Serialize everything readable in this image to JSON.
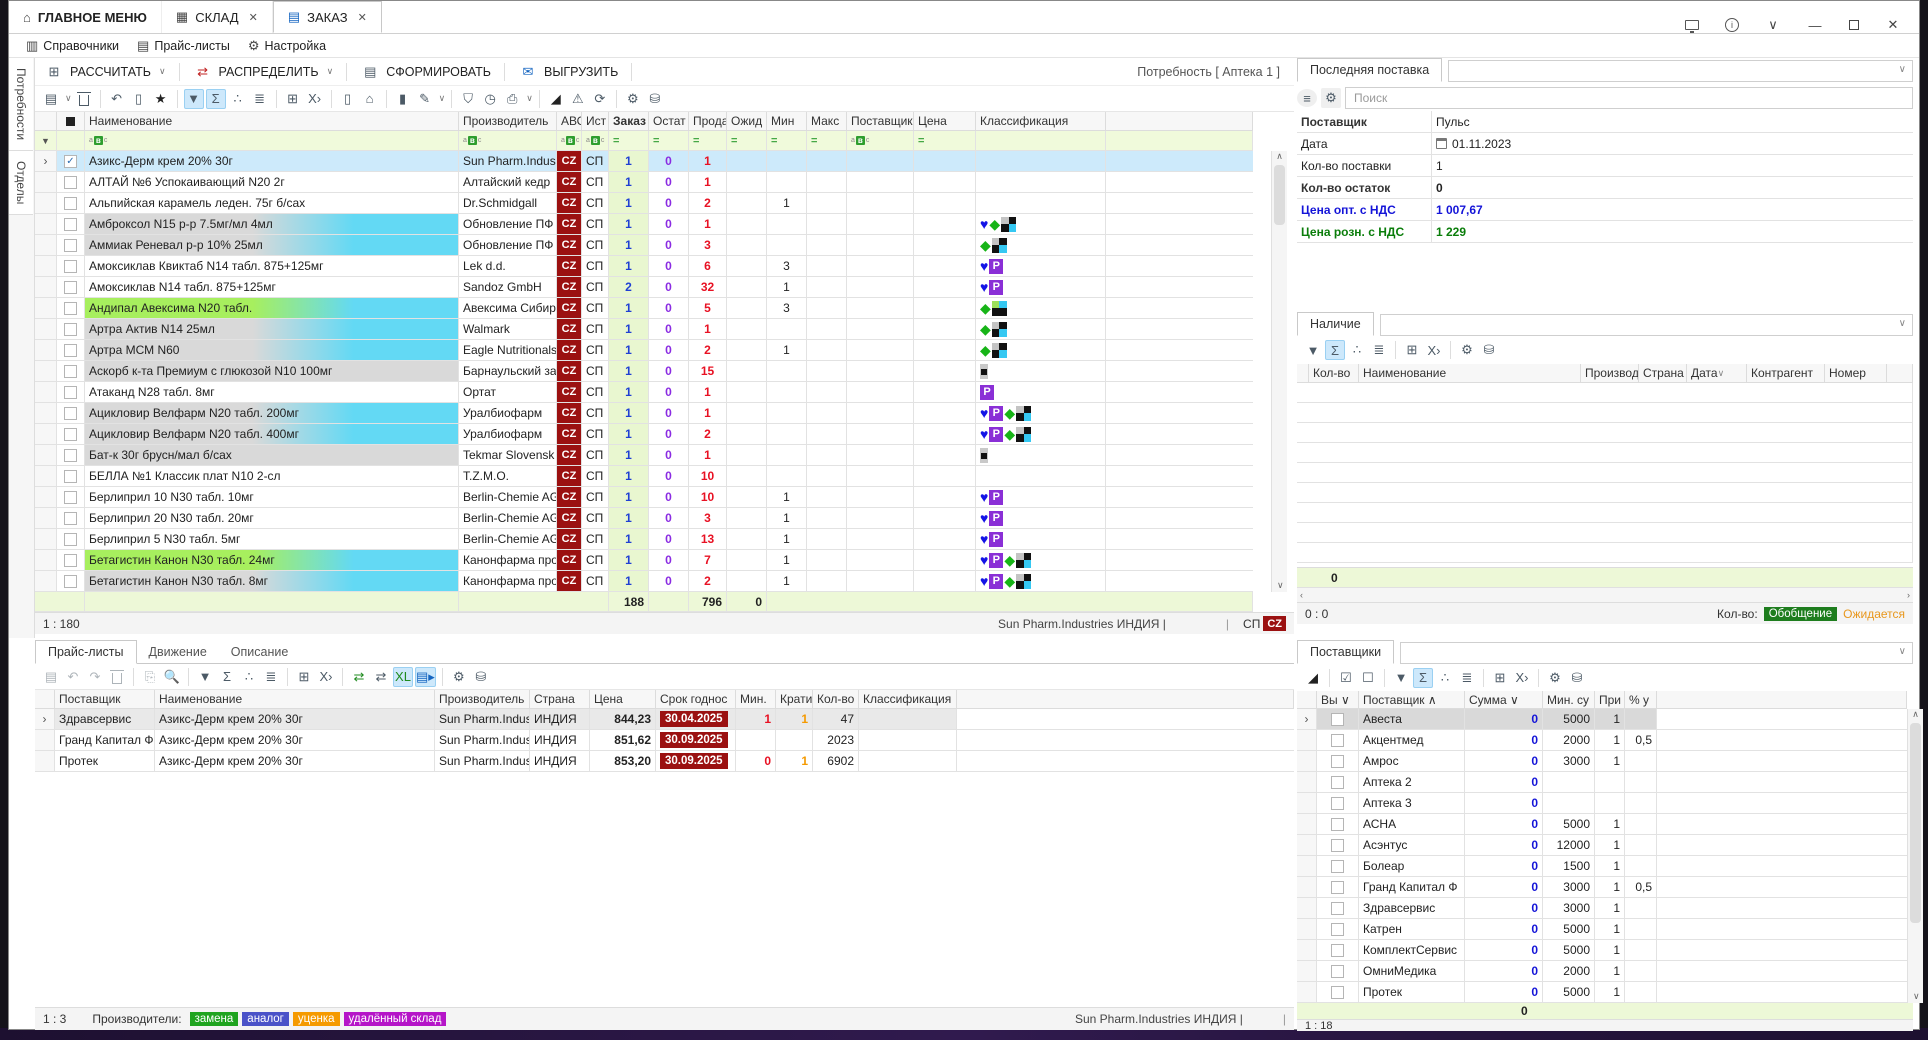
{
  "colors": {
    "accent_blue": "#1f3fd4",
    "purple": "#8a2be2",
    "red": "#e81123",
    "dark_red_badge": "#9b1111",
    "p_badge": "#8a2fd6",
    "heart": "#1414e6",
    "diamond": "#17b417",
    "cyan": "#63d9f4",
    "row_gray": "#d9d9d9",
    "row_green": "#a7ef5e",
    "selected_row": "#cdeafb",
    "filter_row": "#f0fadb",
    "summary_row": "#edf8d7"
  },
  "window": {
    "tabs": [
      {
        "label": "ГЛАВНОЕ МЕНЮ",
        "icon": "home-icon",
        "closable": false,
        "active": false
      },
      {
        "label": "СКЛАД",
        "icon": "warehouse-icon",
        "closable": true,
        "active": false
      },
      {
        "label": "ЗАКАЗ",
        "icon": "order-doc-icon",
        "closable": true,
        "active": true
      }
    ],
    "menu": [
      {
        "label": "Справочники",
        "icon": "book-icon"
      },
      {
        "label": "Прайс-листы",
        "icon": "pricelist-icon"
      },
      {
        "label": "Настройка",
        "icon": "gear-icon"
      }
    ]
  },
  "command_bar": {
    "buttons": [
      {
        "label": "РАССЧИТАТЬ",
        "icon": "calculator-icon",
        "dropdown": true
      },
      {
        "label": "РАСПРЕДЕЛИТЬ",
        "icon": "distribute-icon",
        "dropdown": true
      },
      {
        "label": "СФОРМИРОВАТЬ",
        "icon": "form-doc-icon",
        "dropdown": false
      },
      {
        "label": "ВЫГРУЗИТЬ",
        "icon": "upload-icon",
        "dropdown": false
      }
    ],
    "need_label": "Потребность  [ Аптека 1 ]"
  },
  "left_tabs": [
    "Потребности",
    "Отделы"
  ],
  "main_grid": {
    "columns": [
      "Наименование",
      "Производитель",
      "АВС",
      "Ист",
      "Заказ",
      "Остат",
      "Прода",
      "Ожид",
      "Мин",
      "Макс",
      "Поставщик",
      "Цена",
      "Классификация"
    ],
    "rows": [
      {
        "name": "Азикс-Дерм крем 20% 30г",
        "maker": "Sun Pharm.Indus",
        "av": "CZ",
        "ist": "СП",
        "zakaz": "1",
        "ostat": "0",
        "proda": "1",
        "min": "",
        "bg": "selected",
        "checked": true,
        "icons": []
      },
      {
        "name": "АЛТАЙ №6 Успокаивающий N20 2г",
        "maker": "Алтайский кедр",
        "av": "CZ",
        "ist": "СП",
        "zakaz": "1",
        "ostat": "0",
        "proda": "1",
        "min": "",
        "bg": "white",
        "checked": false,
        "icons": []
      },
      {
        "name": "Альпийская карамель леден. 75г б/сах",
        "maker": "Dr.Schmidgall",
        "av": "CZ",
        "ist": "СП",
        "zakaz": "1",
        "ostat": "0",
        "proda": "2",
        "min": "1",
        "bg": "white",
        "checked": false,
        "icons": []
      },
      {
        "name": "Амброксол N15 р-р 7.5мг/мл 4мл",
        "maker": "Обновление ПФ",
        "av": "CZ",
        "ist": "СП",
        "zakaz": "1",
        "ostat": "0",
        "proda": "1",
        "min": "",
        "bg": "gray-cyan",
        "checked": false,
        "icons": [
          "heart",
          "diamond",
          "checker"
        ]
      },
      {
        "name": "Аммиак Реневал р-р 10% 25мл",
        "maker": "Обновление ПФ",
        "av": "CZ",
        "ist": "СП",
        "zakaz": "1",
        "ostat": "0",
        "proda": "3",
        "min": "",
        "bg": "gray-cyan",
        "checked": false,
        "icons": [
          "diamond",
          "checker"
        ]
      },
      {
        "name": "Амоксиклав Квиктаб N14 табл. 875+125мг",
        "maker": "Lek d.d.",
        "av": "CZ",
        "ist": "СП",
        "zakaz": "1",
        "ostat": "0",
        "proda": "6",
        "min": "3",
        "bg": "white",
        "checked": false,
        "icons": [
          "heart",
          "p"
        ]
      },
      {
        "name": "Амоксиклав N14 табл. 875+125мг",
        "maker": "Sandoz GmbH",
        "av": "CZ",
        "ist": "СП",
        "zakaz": "2",
        "ostat": "0",
        "proda": "32",
        "min": "1",
        "bg": "white",
        "checked": false,
        "icons": [
          "heart",
          "p"
        ]
      },
      {
        "name": "Андипал Авексима N20 табл.",
        "maker": "Авексима Сибир",
        "av": "CZ",
        "ist": "СП",
        "zakaz": "1",
        "ostat": "0",
        "proda": "5",
        "min": "3",
        "bg": "green-cyan",
        "checked": false,
        "icons": [
          "diamond",
          "checker-green"
        ]
      },
      {
        "name": "Артра Актив N14 25мл",
        "maker": "Walmark",
        "av": "CZ",
        "ist": "СП",
        "zakaz": "1",
        "ostat": "0",
        "proda": "1",
        "min": "",
        "bg": "gray-cyan",
        "checked": false,
        "icons": [
          "diamond",
          "checker"
        ]
      },
      {
        "name": "Артра МСМ N60",
        "maker": "Eagle Nutritionals",
        "av": "CZ",
        "ist": "СП",
        "zakaz": "1",
        "ostat": "0",
        "proda": "2",
        "min": "1",
        "bg": "gray-cyan",
        "checked": false,
        "icons": [
          "diamond",
          "checker"
        ]
      },
      {
        "name": "Аскорб к-та Премиум с глюкозой N10 100мг",
        "maker": "Барнаульский за",
        "av": "CZ",
        "ist": "СП",
        "zakaz": "1",
        "ostat": "0",
        "proda": "15",
        "min": "",
        "bg": "gray",
        "checked": false,
        "icons": [
          "checker-small"
        ]
      },
      {
        "name": "Атаканд N28 табл. 8мг",
        "maker": "Ортат",
        "av": "CZ",
        "ist": "СП",
        "zakaz": "1",
        "ostat": "0",
        "proda": "1",
        "min": "",
        "bg": "white",
        "checked": false,
        "icons": [
          "p"
        ]
      },
      {
        "name": "Ацикловир Велфарм N20 табл. 200мг",
        "maker": "Уралбиофарм",
        "av": "CZ",
        "ist": "СП",
        "zakaz": "1",
        "ostat": "0",
        "proda": "1",
        "min": "",
        "bg": "gray-cyan",
        "checked": false,
        "icons": [
          "heart",
          "p",
          "diamond",
          "checker"
        ]
      },
      {
        "name": "Ацикловир Велфарм N20 табл. 400мг",
        "maker": "Уралбиофарм",
        "av": "CZ",
        "ist": "СП",
        "zakaz": "1",
        "ostat": "0",
        "proda": "2",
        "min": "",
        "bg": "gray-cyan",
        "checked": false,
        "icons": [
          "heart",
          "p",
          "diamond",
          "checker"
        ]
      },
      {
        "name": "Бат-к 30г брусн/мал б/сах",
        "maker": "Tekmar Slovensk",
        "av": "CZ",
        "ist": "СП",
        "zakaz": "1",
        "ostat": "0",
        "proda": "1",
        "min": "",
        "bg": "gray",
        "checked": false,
        "icons": [
          "checker-small"
        ]
      },
      {
        "name": "БЕЛЛА №1 Классик плат N10 2-сл",
        "maker": "T.Z.M.O.",
        "av": "CZ",
        "ist": "СП",
        "zakaz": "1",
        "ostat": "0",
        "proda": "10",
        "min": "",
        "bg": "white",
        "checked": false,
        "icons": []
      },
      {
        "name": "Берлиприл 10 N30 табл. 10мг",
        "maker": "Berlin-Chemie AG",
        "av": "CZ",
        "ist": "СП",
        "zakaz": "1",
        "ostat": "0",
        "proda": "10",
        "min": "1",
        "bg": "white",
        "checked": false,
        "icons": [
          "heart",
          "p"
        ]
      },
      {
        "name": "Берлиприл 20 N30 табл. 20мг",
        "maker": "Berlin-Chemie AG",
        "av": "CZ",
        "ist": "СП",
        "zakaz": "1",
        "ostat": "0",
        "proda": "3",
        "min": "1",
        "bg": "white",
        "checked": false,
        "icons": [
          "heart",
          "p"
        ]
      },
      {
        "name": "Берлиприл 5 N30 табл. 5мг",
        "maker": "Berlin-Chemie AG",
        "av": "CZ",
        "ist": "СП",
        "zakaz": "1",
        "ostat": "0",
        "proda": "13",
        "min": "1",
        "bg": "white",
        "checked": false,
        "icons": [
          "heart",
          "p"
        ]
      },
      {
        "name": "Бетагистин Канон N30 табл. 24мг",
        "maker": "Канонфарма про",
        "av": "CZ",
        "ist": "СП",
        "zakaz": "1",
        "ostat": "0",
        "proda": "7",
        "min": "1",
        "bg": "green-cyan",
        "checked": false,
        "icons": [
          "heart",
          "p",
          "diamond",
          "checker"
        ]
      },
      {
        "name": "Бетагистин Канон N30 табл. 8мг",
        "maker": "Канонфарма про",
        "av": "CZ",
        "ist": "СП",
        "zakaz": "1",
        "ostat": "0",
        "proda": "2",
        "min": "1",
        "bg": "gray-cyan",
        "checked": false,
        "icons": [
          "heart",
          "p",
          "diamond",
          "checker"
        ]
      }
    ],
    "summary": {
      "zakaz": "188",
      "proda": "796",
      "ozhid": "0"
    },
    "status": {
      "left": "1 : 180",
      "right": "Sun Pharm.Industries ИНДИЯ |",
      "sep": "|",
      "sp": "СП",
      "cz": "CZ"
    }
  },
  "last_delivery": {
    "title": "Последняя поставка",
    "search_placeholder": "Поиск",
    "rows": [
      {
        "label": "Поставщик",
        "value": "Пульс",
        "style": "plain",
        "bold_label": true
      },
      {
        "label": "Дата",
        "value": "01.11.2023",
        "style": "date",
        "bold_label": false
      },
      {
        "label": "Кол-во поставки",
        "value": "1",
        "style": "plain",
        "bold_label": false
      },
      {
        "label": "Кол-во остаток",
        "value": "0",
        "style": "bold",
        "bold_label": true
      },
      {
        "label": "Цена опт. с НДС",
        "value": "1 007,67",
        "style": "blue",
        "bold_label": true
      },
      {
        "label": "Цена розн. с НДС",
        "value": "1 229",
        "style": "green",
        "bold_label": true
      }
    ]
  },
  "availability": {
    "title": "Наличие",
    "columns": [
      "Кол-во",
      "Наименование",
      "Производ",
      "Страна",
      "Дата",
      "Контрагент",
      "Номер"
    ],
    "summary": "0",
    "status_left": "0 : 0",
    "kolvo_label": "Кол-во:",
    "badge": "Обобщение",
    "expected": "Ожидается"
  },
  "pricelists": {
    "tabs": [
      "Прайс-листы",
      "Движение",
      "Описание"
    ],
    "columns": [
      "Поставщик",
      "Наименование",
      "Производитель",
      "Страна",
      "Цена",
      "Срок годнос",
      "Мин.",
      "Крати",
      "Кол-во",
      "Классификация"
    ],
    "rows": [
      {
        "supplier": "Здравсервис",
        "name": "Азикс-Дерм крем 20% 30г",
        "maker": "Sun Pharm.Indus",
        "country": "ИНДИЯ",
        "price": "844,23",
        "expiry": "30.04.2025",
        "min": "1",
        "krat": "1",
        "qty": "47",
        "selected": true
      },
      {
        "supplier": "Гранд Капитал Ф",
        "name": "Азикс-Дерм крем 20% 30г",
        "maker": "Sun Pharm.Indus",
        "country": "ИНДИЯ",
        "price": "851,62",
        "expiry": "30.09.2025",
        "min": "",
        "krat": "",
        "qty": "2023",
        "selected": false
      },
      {
        "supplier": "Протек",
        "name": "Азикс-Дерм крем 20% 30г",
        "maker": "Sun Pharm.Indus",
        "country": "ИНДИЯ",
        "price": "853,20",
        "expiry": "30.09.2025",
        "min": "0",
        "krat": "1",
        "qty": "6902",
        "selected": false
      }
    ],
    "status_left": "1 : 3",
    "legend_label": "Производители:",
    "legend": [
      {
        "label": "замена",
        "color": "#1fa41f"
      },
      {
        "label": "аналог",
        "color": "#4a52c8"
      },
      {
        "label": "уценка",
        "color": "#f59a00"
      },
      {
        "label": "удалённый склад",
        "color": "#b515c8"
      }
    ],
    "status_right": "Sun Pharm.Industries ИНДИЯ |"
  },
  "suppliers": {
    "title": "Поставщики",
    "columns": [
      "Вы",
      "Поставщик",
      "Сумма",
      "Мин. су",
      "При",
      "% у"
    ],
    "rows": [
      {
        "name": "Авеста",
        "sum": "0",
        "minsum": "5000",
        "pri": "1",
        "pct": "",
        "selected": true
      },
      {
        "name": "Акцентмед",
        "sum": "0",
        "minsum": "2000",
        "pri": "1",
        "pct": "0,5",
        "selected": false
      },
      {
        "name": "Амрос",
        "sum": "0",
        "minsum": "3000",
        "pri": "1",
        "pct": "",
        "selected": false
      },
      {
        "name": "Аптека 2",
        "sum": "0",
        "minsum": "",
        "pri": "",
        "pct": "",
        "selected": false
      },
      {
        "name": "Аптека 3",
        "sum": "0",
        "minsum": "",
        "pri": "",
        "pct": "",
        "selected": false
      },
      {
        "name": "АСНА",
        "sum": "0",
        "minsum": "5000",
        "pri": "1",
        "pct": "",
        "selected": false
      },
      {
        "name": "Асэнтус",
        "sum": "0",
        "minsum": "12000",
        "pri": "1",
        "pct": "",
        "selected": false
      },
      {
        "name": "Болеар",
        "sum": "0",
        "minsum": "1500",
        "pri": "1",
        "pct": "",
        "selected": false
      },
      {
        "name": "Гранд Капитал Ф",
        "sum": "0",
        "minsum": "3000",
        "pri": "1",
        "pct": "0,5",
        "selected": false
      },
      {
        "name": "Здравсервис",
        "sum": "0",
        "minsum": "3000",
        "pri": "1",
        "pct": "",
        "selected": false
      },
      {
        "name": "Катрен",
        "sum": "0",
        "minsum": "5000",
        "pri": "1",
        "pct": "",
        "selected": false
      },
      {
        "name": "КомплектСервис",
        "sum": "0",
        "minsum": "5000",
        "pri": "1",
        "pct": "",
        "selected": false
      },
      {
        "name": "ОмниМедика",
        "sum": "0",
        "minsum": "2000",
        "pri": "1",
        "pct": "",
        "selected": false
      },
      {
        "name": "Протек",
        "sum": "0",
        "minsum": "5000",
        "pri": "1",
        "pct": "",
        "selected": false
      }
    ],
    "summary": "0",
    "status_left": "1 : 18"
  }
}
